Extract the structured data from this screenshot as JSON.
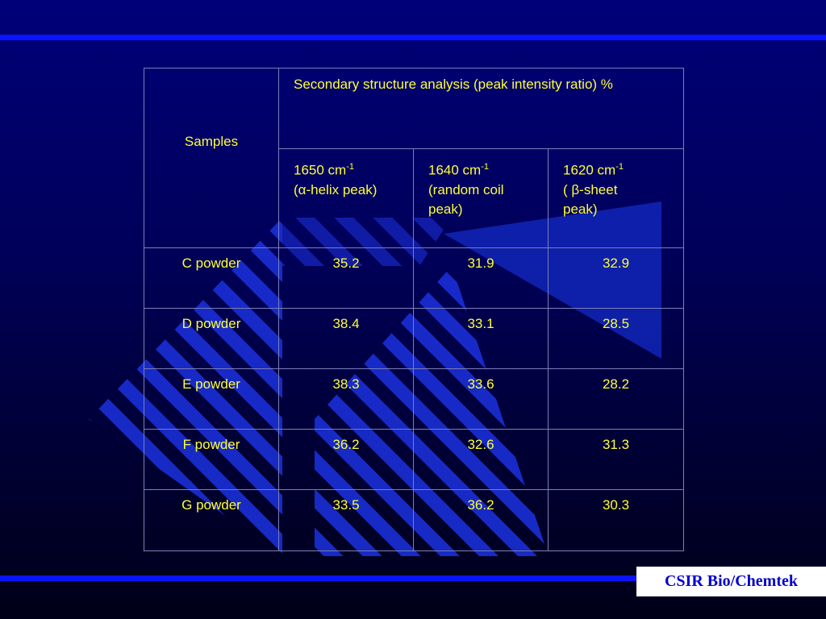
{
  "table": {
    "samples_header": "Samples",
    "group_header": "Secondary structure analysis (peak intensity ratio) %",
    "columns": [
      {
        "wavenumber": "1650 cm",
        "exponent": "-1",
        "line2": "(α-helix peak)",
        "line3": ""
      },
      {
        "wavenumber": "1640 cm",
        "exponent": "-1",
        "line2": "(random coil",
        "line3": "peak)"
      },
      {
        "wavenumber": "1620 cm",
        "exponent": "-1",
        "line2": "( β-sheet",
        "line3": "peak)"
      }
    ],
    "rows": [
      {
        "sample": "C powder",
        "values": [
          "35.2",
          "31.9",
          "32.9"
        ]
      },
      {
        "sample": "D powder",
        "values": [
          "38.4",
          "33.1",
          "28.5"
        ]
      },
      {
        "sample": "E powder",
        "values": [
          "38.3",
          "33.6",
          "28.2"
        ]
      },
      {
        "sample": "F powder",
        "values": [
          "36.2",
          "32.6",
          "31.3"
        ]
      },
      {
        "sample": "G powder",
        "values": [
          "33.5",
          "36.2",
          "30.3"
        ]
      }
    ]
  },
  "footer": {
    "brand": "CSIR Bio/Chemtek"
  },
  "colors": {
    "text": "#ffff33",
    "accent_bar": "#0a14ff",
    "background": "#000066"
  }
}
